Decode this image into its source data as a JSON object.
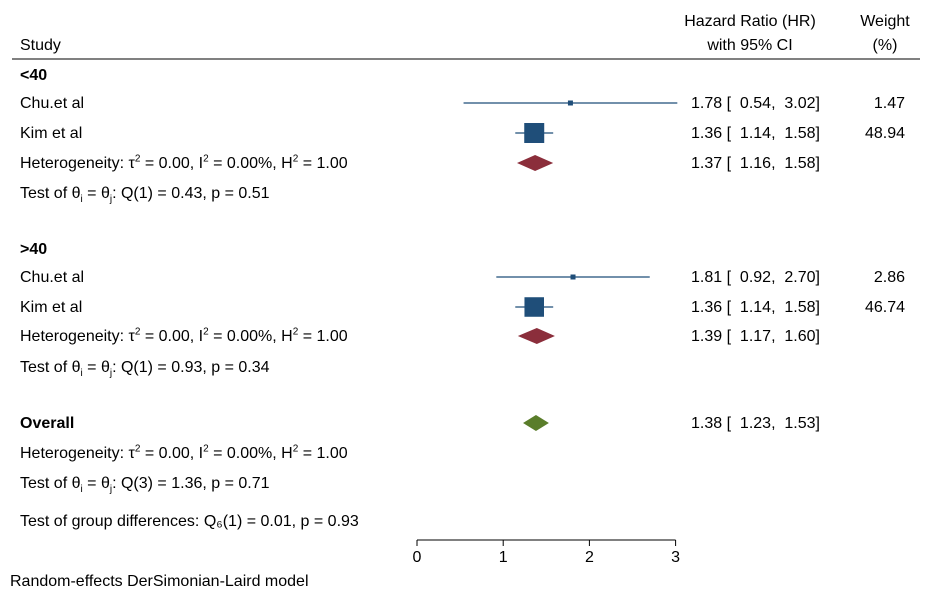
{
  "header": {
    "study": "Study",
    "hr_line1": "Hazard Ratio (HR)",
    "hr_line2": "with 95% CI",
    "weight_line1": "Weight",
    "weight_line2": "(%)"
  },
  "footer": {
    "group_diff": "Test of group differences: Q₆(1) = 0.01, p = 0.93",
    "model": "Random-effects DerSimonian-Laird model"
  },
  "chart_data": {
    "type": "forest",
    "x_axis": {
      "ticks": [
        0,
        1,
        2,
        3
      ],
      "range": [
        0,
        3
      ]
    },
    "groups": [
      {
        "label": "<40",
        "studies": [
          {
            "name": "Chu.et al",
            "hr": 1.78,
            "ci_low": 0.54,
            "ci_high": 3.02,
            "ci_text": "1.78 [  0.54,  3.02]",
            "weight": 1.47,
            "weight_text": "1.47"
          },
          {
            "name": "Kim et al",
            "hr": 1.36,
            "ci_low": 1.14,
            "ci_high": 1.58,
            "ci_text": "1.36 [  1.14,  1.58]",
            "weight": 48.94,
            "weight_text": "48.94"
          }
        ],
        "heterogeneity": {
          "prefix": "Heterogeneity: τ",
          "tau": " = 0.00, I",
          "i2": " = 0.00%, H",
          "h2": " = 1.00"
        },
        "pooled": {
          "hr": 1.37,
          "ci_low": 1.16,
          "ci_high": 1.58,
          "ci_text": "1.37 [  1.16,  1.58]"
        },
        "test": {
          "prefix": "Test of θ",
          "mid": " = θ",
          "rest": ": Q(1) = 0.43, p = 0.51"
        }
      },
      {
        "label": ">40",
        "studies": [
          {
            "name": "Chu.et al",
            "hr": 1.81,
            "ci_low": 0.92,
            "ci_high": 2.7,
            "ci_text": "1.81 [  0.92,  2.70]",
            "weight": 2.86,
            "weight_text": "2.86"
          },
          {
            "name": "Kim et al",
            "hr": 1.36,
            "ci_low": 1.14,
            "ci_high": 1.58,
            "ci_text": "1.36 [  1.14,  1.58]",
            "weight": 46.74,
            "weight_text": "46.74"
          }
        ],
        "heterogeneity": {
          "prefix": "Heterogeneity: τ",
          "tau": " = 0.00, I",
          "i2": " = 0.00%, H",
          "h2": " = 1.00"
        },
        "pooled": {
          "hr": 1.39,
          "ci_low": 1.17,
          "ci_high": 1.6,
          "ci_text": "1.39 [  1.17,  1.60]"
        },
        "test": {
          "prefix": "Test of θ",
          "mid": " = θ",
          "rest": ": Q(1) = 0.93, p = 0.34"
        }
      }
    ],
    "overall": {
      "label": "Overall",
      "hr": 1.38,
      "ci_low": 1.23,
      "ci_high": 1.53,
      "ci_text": "1.38 [  1.23,  1.53]",
      "heterogeneity": {
        "prefix": "Heterogeneity: τ",
        "tau": " = 0.00, I",
        "i2": " = 0.00%, H",
        "h2": " = 1.00"
      },
      "test": {
        "prefix": "Test of θ",
        "mid": " = θ",
        "rest": ": Q(3) = 1.36, p = 0.71"
      }
    },
    "colors": {
      "study": "#1f4e79",
      "subgroup_diamond": "#8b2e3b",
      "overall_diamond": "#5a7d2a"
    }
  }
}
